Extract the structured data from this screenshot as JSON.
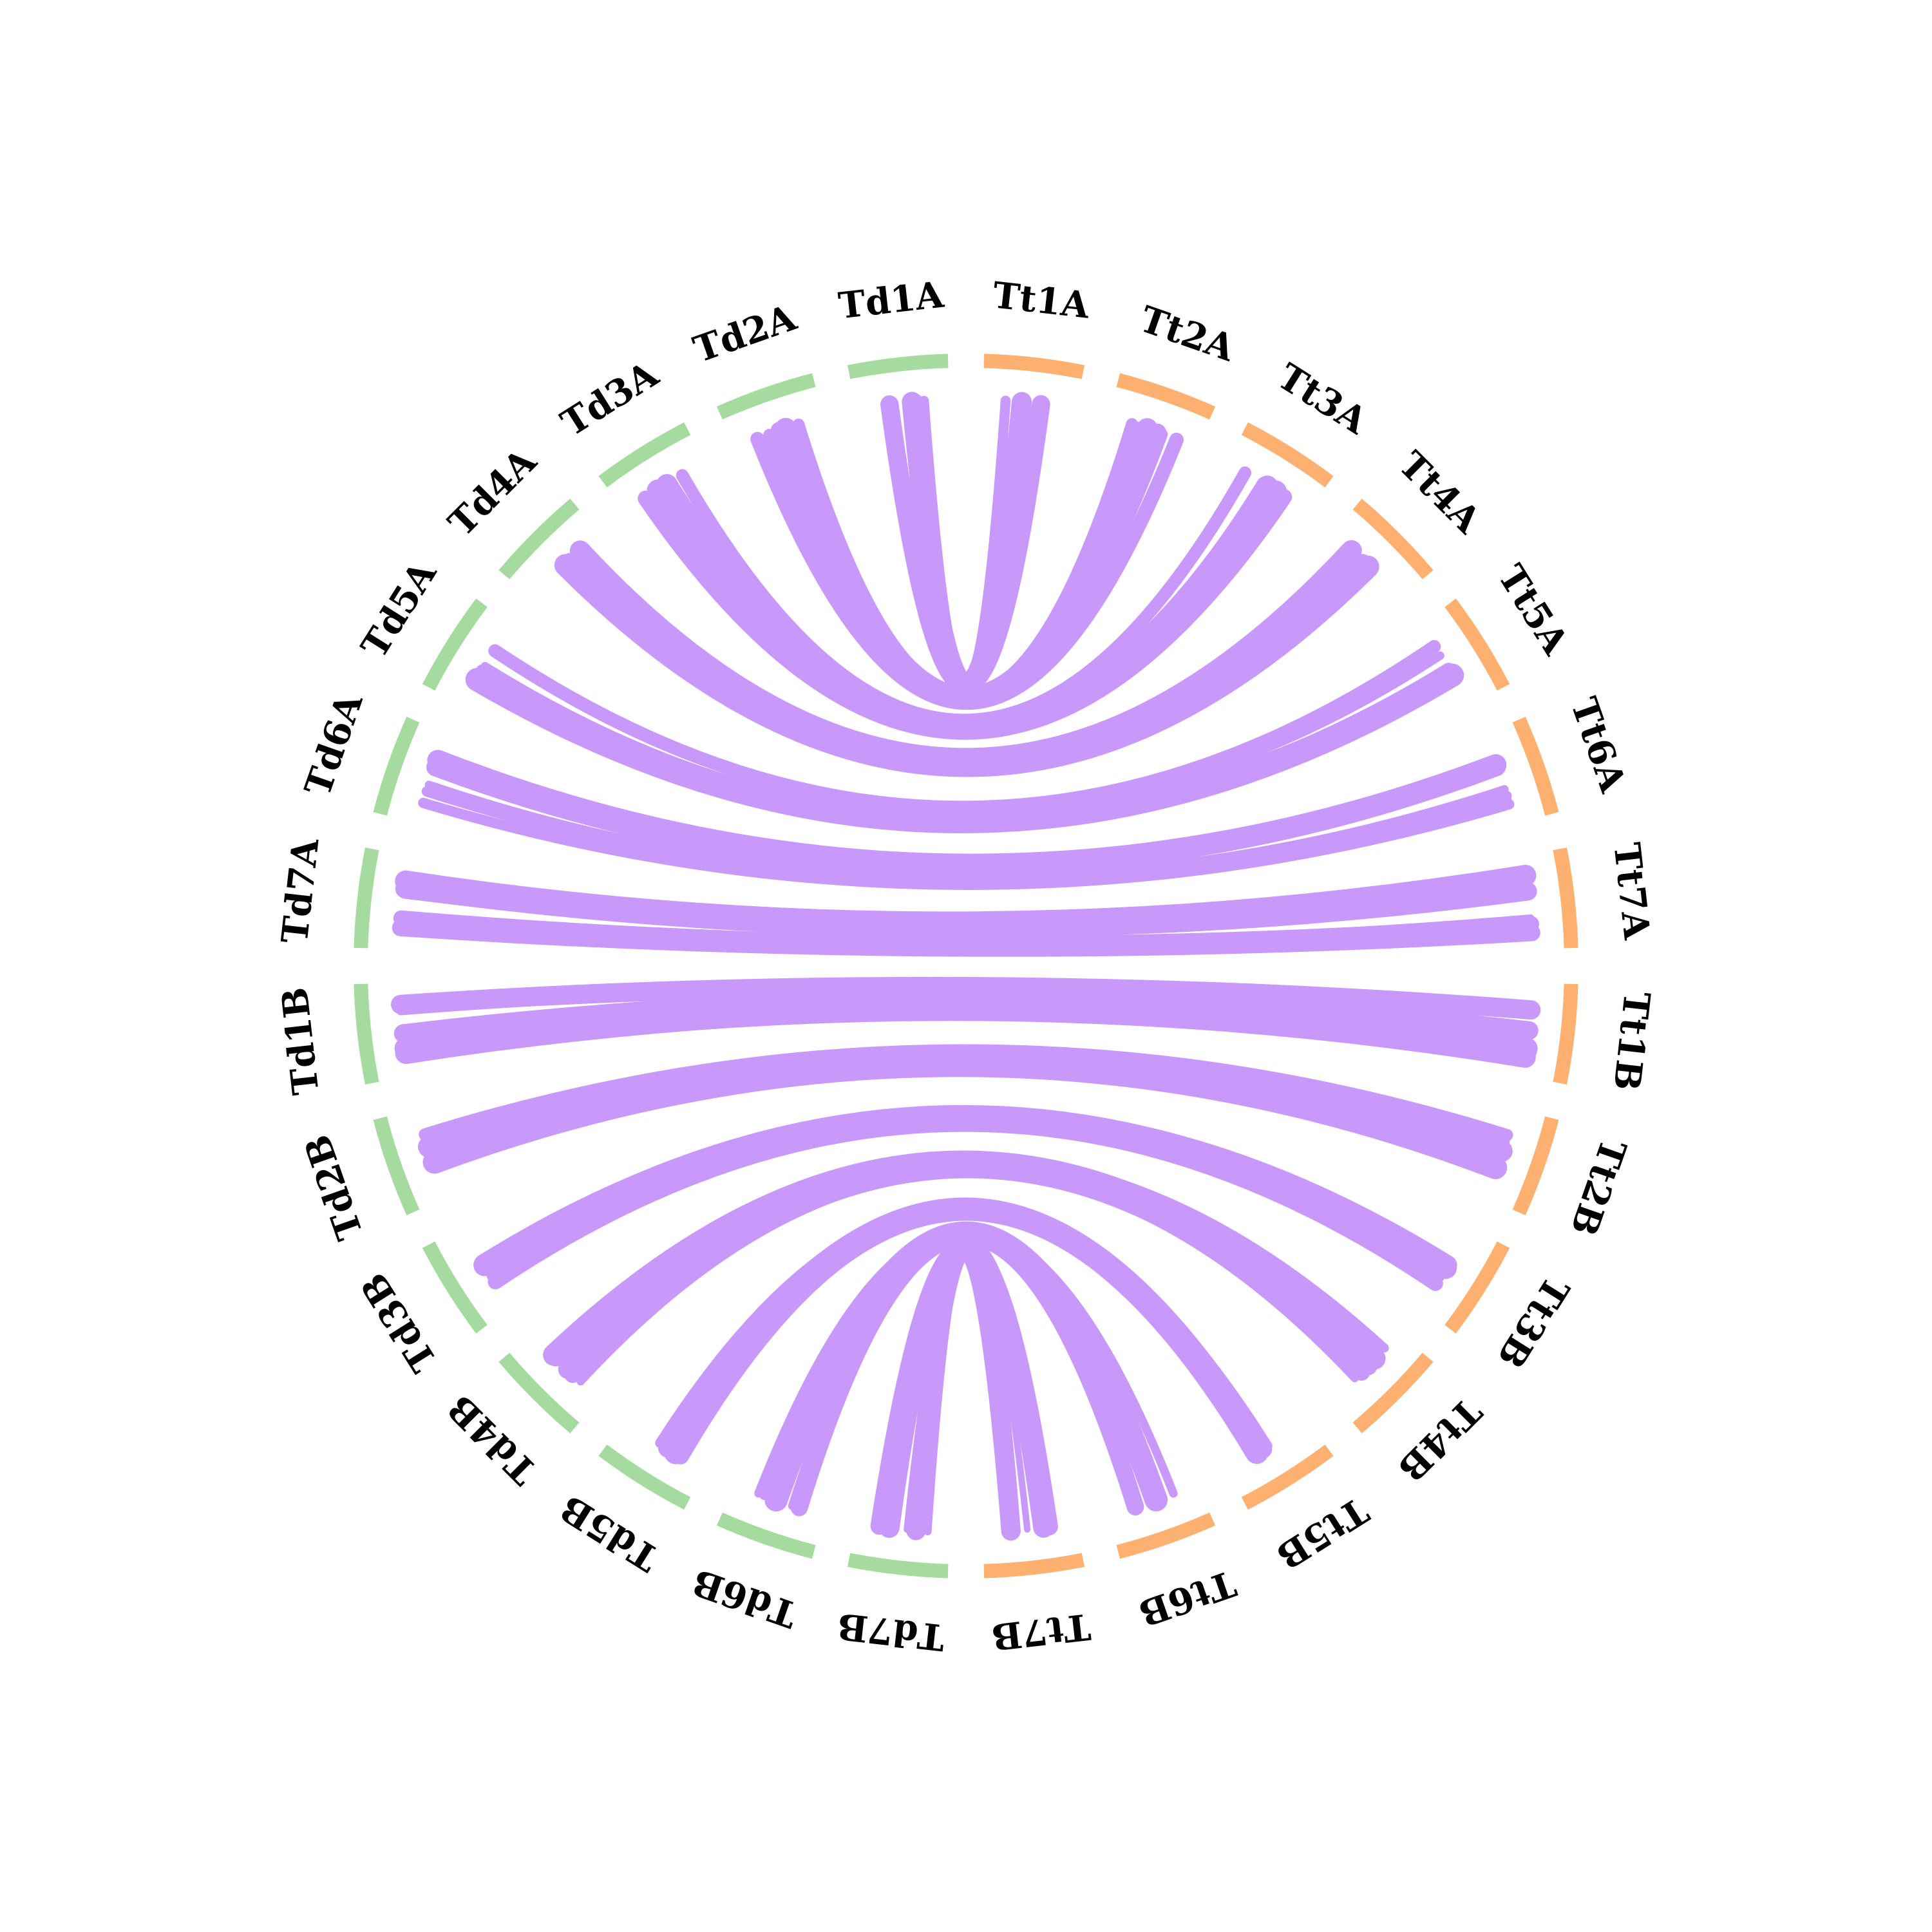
{
  "diagram": {
    "type": "chord",
    "groups": [
      {
        "name": "Td",
        "color": "#a6dba0"
      },
      {
        "name": "Tt",
        "color": "#fdb06f"
      }
    ],
    "ribbon_color": "#c898fa",
    "chromosomes_td": [
      "Td1A",
      "Td2A",
      "Td3A",
      "Td4A",
      "Td5A",
      "Td6A",
      "Td7A",
      "Td1B",
      "Td2B",
      "Td3B",
      "Td4B",
      "Td5B",
      "Td6B",
      "Td7B"
    ],
    "chromosomes_tt": [
      "Tt1A",
      "Tt2A",
      "Tt3A",
      "Tt4A",
      "Tt5A",
      "Tt6A",
      "Tt7A",
      "Tt1B",
      "Tt2B",
      "Tt3B",
      "Tt4B",
      "Tt5B",
      "Tt6B",
      "Tt7B"
    ],
    "links": [
      {
        "td": "Td1A",
        "tt": "Tt1A"
      },
      {
        "td": "Td2A",
        "tt": "Tt2A"
      },
      {
        "td": "Td3A",
        "tt": "Tt3A"
      },
      {
        "td": "Td4A",
        "tt": "Tt4A"
      },
      {
        "td": "Td5A",
        "tt": "Tt5A"
      },
      {
        "td": "Td6A",
        "tt": "Tt6A"
      },
      {
        "td": "Td7A",
        "tt": "Tt7A"
      },
      {
        "td": "Td1B",
        "tt": "Tt1B"
      },
      {
        "td": "Td2B",
        "tt": "Tt2B"
      },
      {
        "td": "Td3B",
        "tt": "Tt3B"
      },
      {
        "td": "Td4B",
        "tt": "Tt4B"
      },
      {
        "td": "Td5B",
        "tt": "Tt5B"
      },
      {
        "td": "Td6B",
        "tt": "Tt6B"
      },
      {
        "td": "Td7B",
        "tt": "Tt7B"
      }
    ]
  }
}
